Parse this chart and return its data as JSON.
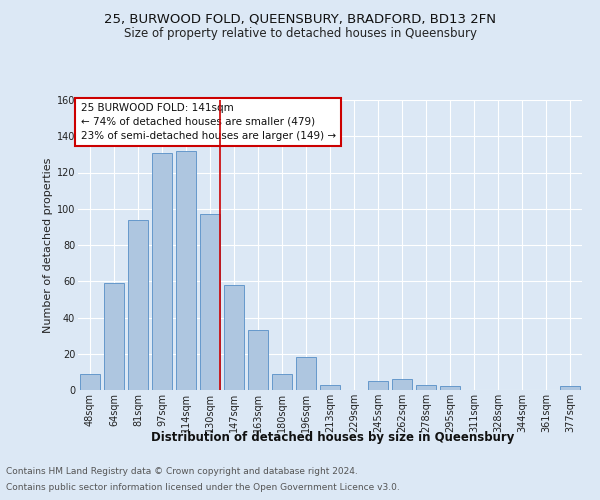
{
  "title_line1": "25, BURWOOD FOLD, QUEENSBURY, BRADFORD, BD13 2FN",
  "title_line2": "Size of property relative to detached houses in Queensbury",
  "xlabel": "Distribution of detached houses by size in Queensbury",
  "ylabel": "Number of detached properties",
  "categories": [
    "48sqm",
    "64sqm",
    "81sqm",
    "97sqm",
    "114sqm",
    "130sqm",
    "147sqm",
    "163sqm",
    "180sqm",
    "196sqm",
    "213sqm",
    "229sqm",
    "245sqm",
    "262sqm",
    "278sqm",
    "295sqm",
    "311sqm",
    "328sqm",
    "344sqm",
    "361sqm",
    "377sqm"
  ],
  "values": [
    9,
    59,
    94,
    131,
    132,
    97,
    58,
    33,
    9,
    18,
    3,
    0,
    5,
    6,
    3,
    2,
    0,
    0,
    0,
    0,
    2
  ],
  "bar_color": "#aec6e0",
  "bar_edge_color": "#6699cc",
  "highlight_line_color": "#cc0000",
  "highlight_index": 5,
  "annotation_text_line1": "25 BURWOOD FOLD: 141sqm",
  "annotation_text_line2": "← 74% of detached houses are smaller (479)",
  "annotation_text_line3": "23% of semi-detached houses are larger (149) →",
  "annotation_box_facecolor": "#ffffff",
  "annotation_box_edgecolor": "#cc0000",
  "footer_line1": "Contains HM Land Registry data © Crown copyright and database right 2024.",
  "footer_line2": "Contains public sector information licensed under the Open Government Licence v3.0.",
  "ylim": [
    0,
    160
  ],
  "yticks": [
    0,
    20,
    40,
    60,
    80,
    100,
    120,
    140,
    160
  ],
  "bg_color": "#dce8f5",
  "plot_bg_color": "#dce8f5",
  "grid_color": "#ffffff",
  "title_fontsize": 9.5,
  "subtitle_fontsize": 8.5,
  "ylabel_fontsize": 8,
  "xlabel_fontsize": 8.5,
  "tick_fontsize": 7,
  "annotation_fontsize": 7.5,
  "footer_fontsize": 6.5
}
